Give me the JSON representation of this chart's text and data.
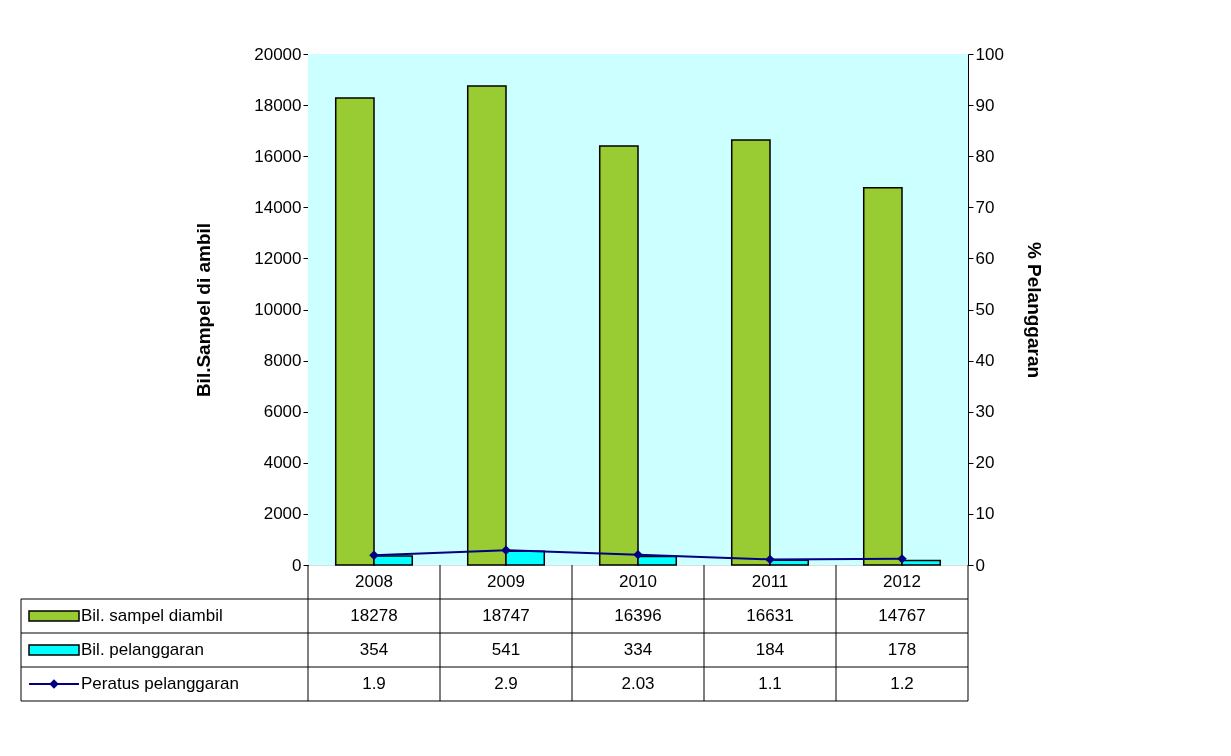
{
  "chart_data": {
    "type": "bar",
    "xlabel": null,
    "ylabel": "Bil.Sampel di ambil",
    "y2label": "% Pelanggaran",
    "categories": [
      "2008",
      "2009",
      "2010",
      "2011",
      "2012"
    ],
    "series": [
      {
        "name": "Bil. sampel diambil",
        "color": "#99cc33",
        "values": [
          18278,
          18747,
          16396,
          16631,
          14767
        ]
      },
      {
        "name": "Bil. pelanggaran",
        "color": "#00ffff",
        "values": [
          354,
          541,
          334,
          184,
          178
        ]
      },
      {
        "name": "Peratus pelanggaran",
        "type": "line",
        "axis": "y2",
        "color": "#000080",
        "marker": "diamond",
        "values": [
          1.9,
          2.9,
          2.03,
          1.1,
          1.2
        ]
      }
    ],
    "ylim": [
      0,
      20000
    ],
    "yticks": [
      0,
      2000,
      4000,
      6000,
      8000,
      10000,
      12000,
      14000,
      16000,
      18000,
      20000
    ],
    "y2lim": [
      0,
      100
    ],
    "y2ticks": [
      0,
      10,
      20,
      30,
      40,
      50,
      60,
      70,
      80,
      90,
      100
    ],
    "data_labels": true,
    "legend": "bottom"
  }
}
